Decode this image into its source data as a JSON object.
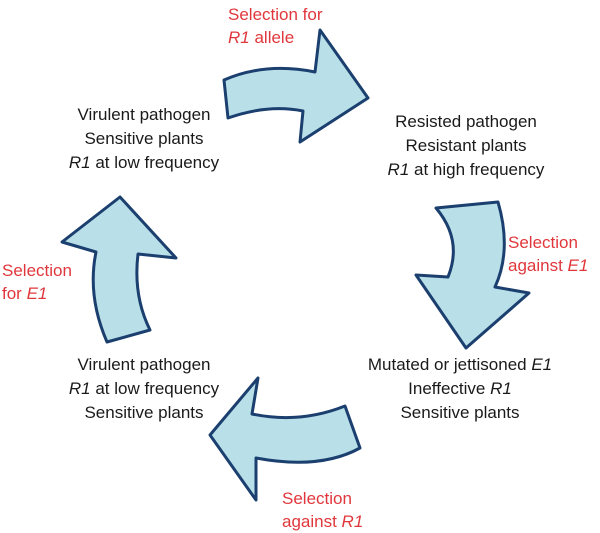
{
  "colors": {
    "arrow_fill": "#b9dfe9",
    "arrow_stroke": "#1b3f6e",
    "selection_text": "#e0373c",
    "state_text": "#1a1a1a"
  },
  "states": {
    "top_left": {
      "line1": "Virulent pathogen",
      "line2": "Sensitive plants",
      "line3_italic": "R1",
      "line3_rest": " at low frequency"
    },
    "top_right": {
      "line1": "Resisted pathogen",
      "line2": "Resistant plants",
      "line3_italic": "R1",
      "line3_rest": " at high frequency"
    },
    "bottom_right": {
      "line1_rest": "Mutated or jettisoned ",
      "line1_italic": "E1",
      "line2_rest": "Ineffective ",
      "line2_italic": "R1",
      "line3": "Sensitive plants"
    },
    "bottom_left": {
      "line1": "Virulent pathogen",
      "line2_italic": "R1",
      "line2_rest": " at low frequency",
      "line3": "Sensitive plants"
    }
  },
  "selections": {
    "top": {
      "line1": "Selection for",
      "line2_italic": "R1",
      "line2_rest": " allele"
    },
    "right": {
      "line1": "Selection",
      "line2_rest": "against ",
      "line2_italic": "E1"
    },
    "bottom": {
      "line1": "Selection",
      "line2_rest": "against ",
      "line2_italic": "R1"
    },
    "left": {
      "line1": "Selection",
      "line2_rest": "for ",
      "line2_italic": "E1"
    }
  },
  "arrows": [
    {
      "id": "top",
      "direction": "right"
    },
    {
      "id": "right",
      "direction": "down"
    },
    {
      "id": "bottom",
      "direction": "left"
    },
    {
      "id": "left",
      "direction": "up"
    }
  ]
}
